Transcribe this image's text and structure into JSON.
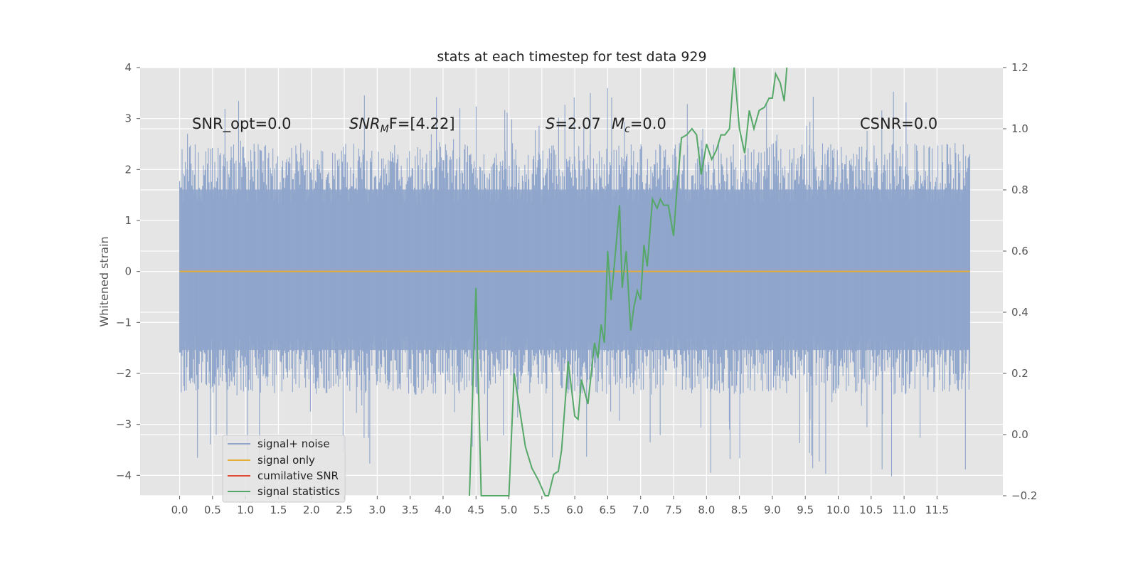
{
  "chart_data": {
    "type": "line",
    "title": "stats at each timestep for test data 929",
    "ylabel": "Whitened strain",
    "xlabel": "",
    "xlim": [
      -0.6,
      12.5
    ],
    "ylim": [
      -4.4,
      4.0
    ],
    "y2lim": [
      -0.2,
      1.2
    ],
    "xticks": [
      "0.0",
      "0.5",
      "1.0",
      "1.5",
      "2.0",
      "2.5",
      "3.0",
      "3.5",
      "4.0",
      "4.5",
      "5.0",
      "5.5",
      "6.0",
      "6.5",
      "7.0",
      "7.5",
      "8.0",
      "8.5",
      "9.0",
      "9.5",
      "10.0",
      "10.5",
      "11.0",
      "11.5"
    ],
    "yticks": [
      "4",
      "3",
      "2",
      "1",
      "0",
      "−1",
      "−2",
      "−3",
      "−4"
    ],
    "y2ticks": [
      "1.2",
      "1.0",
      "0.8",
      "0.6",
      "0.4",
      "0.2",
      "0.0",
      "−0.2"
    ],
    "grid": true,
    "style": "ggplot",
    "colors": {
      "signal_noise": "#8fa5cb",
      "signal_only": "#e5ae38",
      "cumulative_snr": "#e24a33",
      "signal_statistics": "#55a868",
      "background": "#e5e5e5",
      "grid": "#ffffff"
    },
    "annotations": {
      "snr_opt": "SNR_opt=0.0",
      "snr_mf_main": "SNR",
      "snr_mf_sub": "M",
      "snr_mf_tail": "F=[4.22]",
      "s_var": "S",
      "s_val": "=2.07",
      "mc_var": "M",
      "mc_sub": "c",
      "mc_val": "=0.0",
      "csnr": "CSNR=0.0"
    },
    "legend": {
      "position": "lower-left",
      "items": [
        "signal+ noise",
        "signal only",
        "cumilative SNR",
        "signal statistics"
      ]
    },
    "series": [
      {
        "name": "signal+ noise",
        "x_range": [
          0.0,
          12.0
        ],
        "band_min": -2.3,
        "band_max": 2.4,
        "peak_max": 3.6,
        "peak_min": -4.1,
        "axis": "left"
      },
      {
        "name": "signal only",
        "x_range": [
          0.0,
          12.0
        ],
        "values": [
          0.0,
          0.0
        ],
        "axis": "left"
      },
      {
        "name": "cumilative SNR",
        "x": [],
        "y": [],
        "axis": "left"
      },
      {
        "name": "signal statistics",
        "axis": "right",
        "x": [
          4.4,
          4.5,
          4.58,
          4.65,
          4.72,
          4.8,
          4.9,
          5.0,
          5.08,
          5.15,
          5.25,
          5.35,
          5.45,
          5.55,
          5.6,
          5.68,
          5.75,
          5.8,
          5.9,
          6.0,
          6.05,
          6.1,
          6.2,
          6.3,
          6.35,
          6.4,
          6.45,
          6.5,
          6.55,
          6.62,
          6.68,
          6.72,
          6.78,
          6.85,
          6.9,
          6.95,
          7.0,
          7.05,
          7.1,
          7.18,
          7.25,
          7.3,
          7.35,
          7.42,
          7.5,
          7.55,
          7.62,
          7.7,
          7.78,
          7.85,
          7.92,
          8.0,
          8.08,
          8.15,
          8.22,
          8.28,
          8.35,
          8.42,
          8.5,
          8.58,
          8.65,
          8.72,
          8.8,
          8.88,
          8.95,
          9.0,
          9.05,
          9.12,
          9.18,
          9.22
        ],
        "y": [
          -0.2,
          0.48,
          -0.2,
          -0.2,
          -0.2,
          -0.2,
          -0.2,
          -0.2,
          0.2,
          0.1,
          -0.04,
          -0.11,
          -0.15,
          -0.2,
          -0.2,
          -0.13,
          -0.12,
          -0.05,
          0.24,
          0.06,
          0.05,
          0.18,
          0.1,
          0.3,
          0.25,
          0.36,
          0.3,
          0.6,
          0.44,
          0.6,
          0.75,
          0.48,
          0.6,
          0.34,
          0.42,
          0.47,
          0.44,
          0.62,
          0.55,
          0.77,
          0.74,
          0.77,
          0.75,
          0.75,
          0.65,
          0.8,
          0.97,
          0.98,
          1.0,
          0.98,
          0.85,
          0.95,
          0.9,
          0.93,
          0.98,
          0.98,
          1.0,
          1.2,
          1.0,
          0.92,
          1.06,
          1.0,
          1.06,
          1.07,
          1.1,
          1.1,
          1.18,
          1.15,
          1.09,
          1.2
        ]
      }
    ]
  }
}
